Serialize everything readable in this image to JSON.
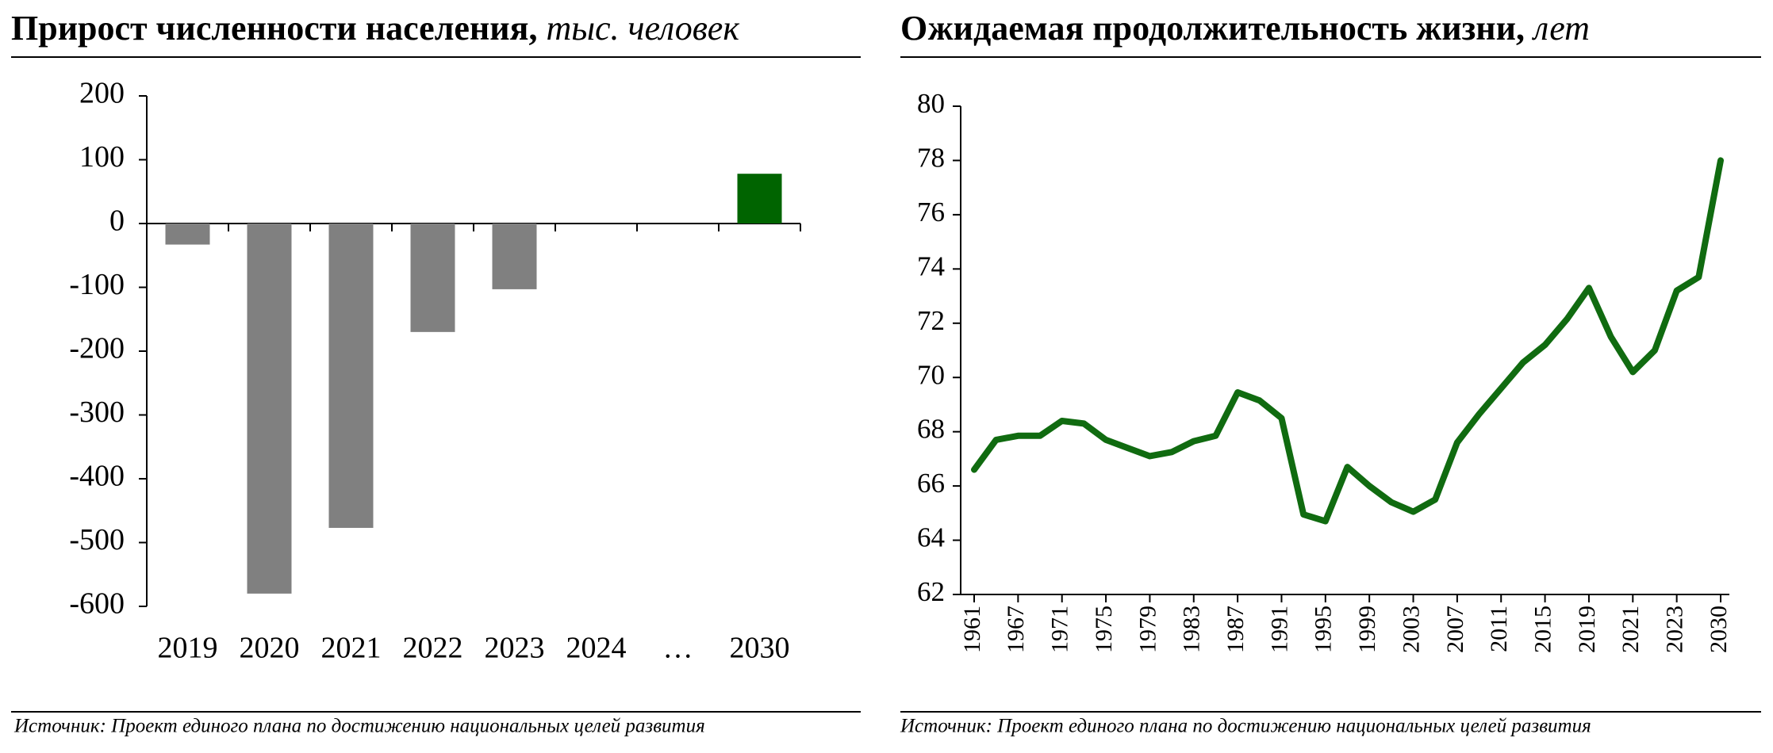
{
  "chart_data": [
    {
      "type": "bar",
      "title": "Прирост численности населения,",
      "title_unit": "тыс. человек",
      "categories": [
        "2019",
        "2020",
        "2021",
        "2022",
        "2023",
        "2024",
        "…",
        "2030"
      ],
      "values": [
        -33,
        -580,
        -477,
        -170,
        -103,
        null,
        null,
        78
      ],
      "colors": [
        "#808080",
        "#808080",
        "#808080",
        "#808080",
        "#808080",
        null,
        null,
        "#006400"
      ],
      "ylim": [
        -600,
        200
      ],
      "yticks": [
        -600,
        -500,
        -400,
        -300,
        -200,
        -100,
        0,
        100,
        200
      ],
      "source": "Источник: Проект единого плана по достижению национальных целей развития"
    },
    {
      "type": "line",
      "title": "Ожидаемая продолжительность жизни,",
      "title_unit": "лет",
      "categories": [
        "1961",
        null,
        "1967",
        null,
        "1971",
        null,
        "1975",
        null,
        "1979",
        null,
        "1983",
        null,
        "1987",
        null,
        "1991",
        null,
        "1995",
        null,
        "1999",
        null,
        "2003",
        null,
        "2007",
        null,
        "2011",
        null,
        "2015",
        null,
        "2019",
        null,
        "2021",
        null,
        "2023",
        null,
        "2030"
      ],
      "values": [
        66.6,
        67.7,
        67.85,
        67.85,
        68.4,
        68.3,
        67.7,
        67.4,
        67.1,
        67.25,
        67.65,
        67.85,
        69.45,
        69.15,
        68.5,
        64.95,
        64.7,
        66.7,
        66.0,
        65.4,
        65.05,
        65.5,
        67.6,
        68.65,
        69.6,
        70.55,
        71.2,
        72.15,
        73.3,
        71.5,
        70.2,
        71.0,
        73.2,
        73.7,
        78.0
      ],
      "color": "#106b10",
      "ylim": [
        62,
        80
      ],
      "yticks": [
        62,
        64,
        66,
        68,
        70,
        72,
        74,
        76,
        78,
        80
      ],
      "source": "Источник: Проект единого плана по достижению национальных целей развития"
    }
  ]
}
